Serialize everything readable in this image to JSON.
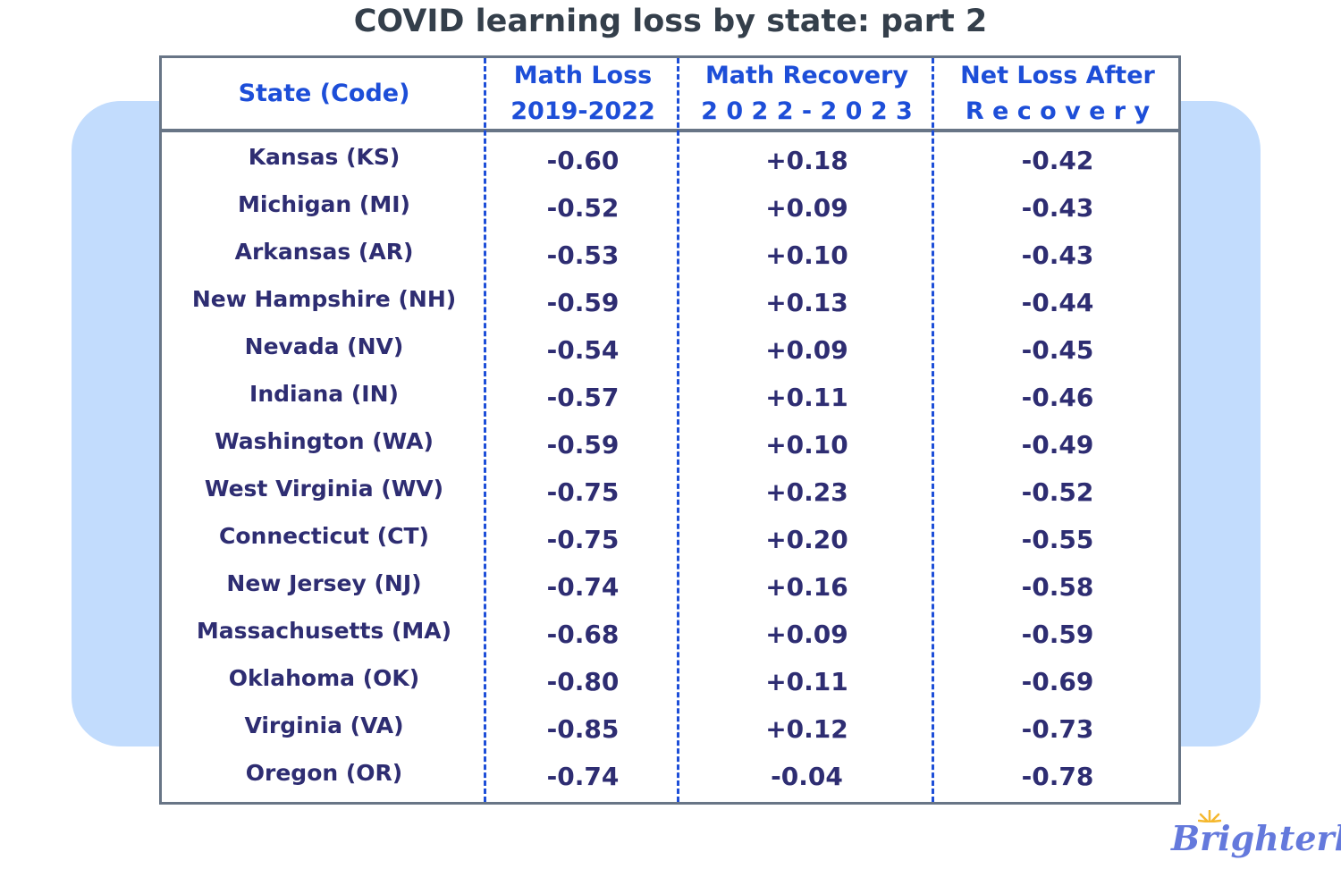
{
  "title": "COVID learning loss by state: part 2",
  "headers": [
    [
      "State (Code)"
    ],
    [
      "Math  Loss",
      "2019-2022"
    ],
    [
      "Math Recovery",
      "2 0 2 2 - 2 0 2 3"
    ],
    [
      "Net Loss After",
      "R e c o v e r y"
    ]
  ],
  "rows": [
    [
      "Kansas (KS)",
      "-0.60",
      "+0.18",
      "-0.42"
    ],
    [
      "Michigan (MI)",
      "-0.52",
      "+0.09",
      "-0.43"
    ],
    [
      "Arkansas (AR)",
      "-0.53",
      "+0.10",
      "-0.43"
    ],
    [
      "New Hampshire (NH)",
      "-0.59",
      "+0.13",
      "-0.44"
    ],
    [
      "Nevada (NV)",
      "-0.54",
      "+0.09",
      "-0.45"
    ],
    [
      "Indiana (IN)",
      "-0.57",
      "+0.11",
      "-0.46"
    ],
    [
      "Washington (WA)",
      "-0.59",
      "+0.10",
      "-0.49"
    ],
    [
      "West Virginia (WV)",
      "-0.75",
      "+0.23",
      "-0.52"
    ],
    [
      "Connecticut (CT)",
      "-0.75",
      "+0.20",
      "-0.55"
    ],
    [
      "New Jersey (NJ)",
      "-0.74",
      "+0.16",
      "-0.58"
    ],
    [
      "Massachusetts (MA)",
      "-0.68",
      "+0.09",
      "-0.59"
    ],
    [
      "Oklahoma (OK)",
      "-0.80",
      "+0.11",
      "-0.69"
    ],
    [
      "Virginia (VA)",
      "-0.85",
      "+0.12",
      "-0.73"
    ],
    [
      "Oregon (OR)",
      "-0.74",
      "-0.04",
      "-0.78"
    ]
  ],
  "logo": "Brighterly",
  "colors": {
    "header_text": "#1d4ed8",
    "body_text": "#2e2d72",
    "background_panel": "#c2dcfd",
    "logo": "#6479dc"
  }
}
